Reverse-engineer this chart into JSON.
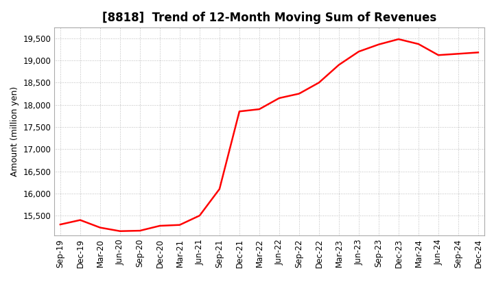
{
  "title": "[8818]  Trend of 12-Month Moving Sum of Revenues",
  "ylabel": "Amount (million yen)",
  "background_color": "#ffffff",
  "grid_color": "#bbbbbb",
  "line_color": "#ff0000",
  "x_labels": [
    "Sep-19",
    "Dec-19",
    "Mar-20",
    "Jun-20",
    "Sep-20",
    "Dec-20",
    "Mar-21",
    "Jun-21",
    "Sep-21",
    "Dec-21",
    "Mar-22",
    "Jun-22",
    "Sep-22",
    "Dec-22",
    "Mar-23",
    "Jun-23",
    "Sep-23",
    "Dec-23",
    "Mar-24",
    "Jun-24",
    "Sep-24",
    "Dec-24"
  ],
  "y_values": [
    15300,
    15400,
    15230,
    15150,
    15160,
    15270,
    15290,
    15500,
    16100,
    17850,
    17900,
    18150,
    18250,
    18500,
    18900,
    19200,
    19360,
    19480,
    19370,
    19120,
    19150,
    19180
  ],
  "ylim_min": 15050,
  "ylim_max": 19750,
  "yticks": [
    15500,
    16000,
    16500,
    17000,
    17500,
    18000,
    18500,
    19000,
    19500
  ],
  "title_fontsize": 12,
  "ylabel_fontsize": 9,
  "tick_fontsize": 8.5,
  "line_width": 1.8
}
